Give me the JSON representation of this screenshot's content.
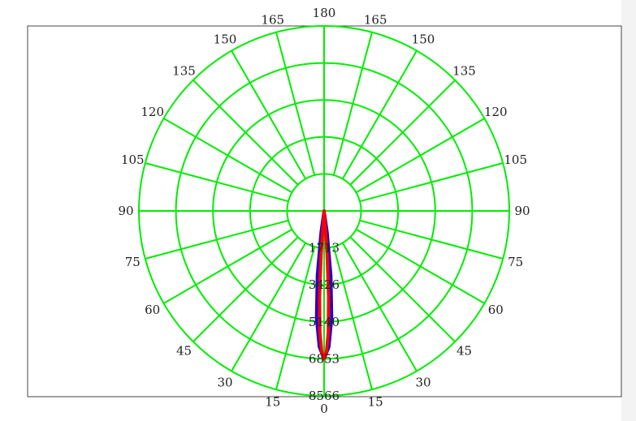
{
  "chart_data": {
    "type": "polar-line",
    "title": "",
    "angle_tick_labels": [
      {
        "angle": 0,
        "label": "0"
      },
      {
        "angle": 15,
        "label": "15"
      },
      {
        "angle": 30,
        "label": "30"
      },
      {
        "angle": 45,
        "label": "45"
      },
      {
        "angle": 60,
        "label": "60"
      },
      {
        "angle": 75,
        "label": "75"
      },
      {
        "angle": 90,
        "label": "90"
      },
      {
        "angle": 105,
        "label": "105"
      },
      {
        "angle": 120,
        "label": "120"
      },
      {
        "angle": 135,
        "label": "135"
      },
      {
        "angle": 150,
        "label": "150"
      },
      {
        "angle": 165,
        "label": "165"
      },
      {
        "angle": 180,
        "label": "180"
      },
      {
        "angle": -165,
        "label": "165"
      },
      {
        "angle": -150,
        "label": "150"
      },
      {
        "angle": -135,
        "label": "135"
      },
      {
        "angle": -120,
        "label": "120"
      },
      {
        "angle": -105,
        "label": "105"
      },
      {
        "angle": -90,
        "label": "90"
      },
      {
        "angle": -75,
        "label": "75"
      },
      {
        "angle": -60,
        "label": "60"
      },
      {
        "angle": -45,
        "label": "45"
      },
      {
        "angle": -30,
        "label": "30"
      },
      {
        "angle": -15,
        "label": "15"
      }
    ],
    "radial_ticks": [
      {
        "value": 1713,
        "label": "1713"
      },
      {
        "value": 3426,
        "label": "3426"
      },
      {
        "value": 5140,
        "label": "5140"
      },
      {
        "value": 6853,
        "label": "6853"
      },
      {
        "value": 8566,
        "label": "8566"
      }
    ],
    "r_max": 8566,
    "grid": true,
    "grid_color": "#00ee00",
    "series": [
      {
        "color": "#2200cc",
        "points": [
          [
            0,
            6853
          ],
          [
            2,
            6300
          ],
          [
            4,
            5000
          ],
          [
            6,
            3000
          ],
          [
            8,
            1000
          ],
          [
            10,
            0
          ],
          [
            -2,
            6300
          ],
          [
            -4,
            5000
          ],
          [
            -6,
            3000
          ],
          [
            -8,
            1000
          ],
          [
            -10,
            0
          ]
        ]
      },
      {
        "color": "#ff0000",
        "points": [
          [
            0,
            6853
          ],
          [
            1,
            6500
          ],
          [
            2,
            5600
          ],
          [
            3,
            4000
          ],
          [
            4,
            2000
          ],
          [
            5,
            0
          ],
          [
            -1,
            6500
          ],
          [
            -2,
            5600
          ],
          [
            -3,
            4000
          ],
          [
            -4,
            2000
          ],
          [
            -5,
            0
          ]
        ]
      }
    ]
  }
}
